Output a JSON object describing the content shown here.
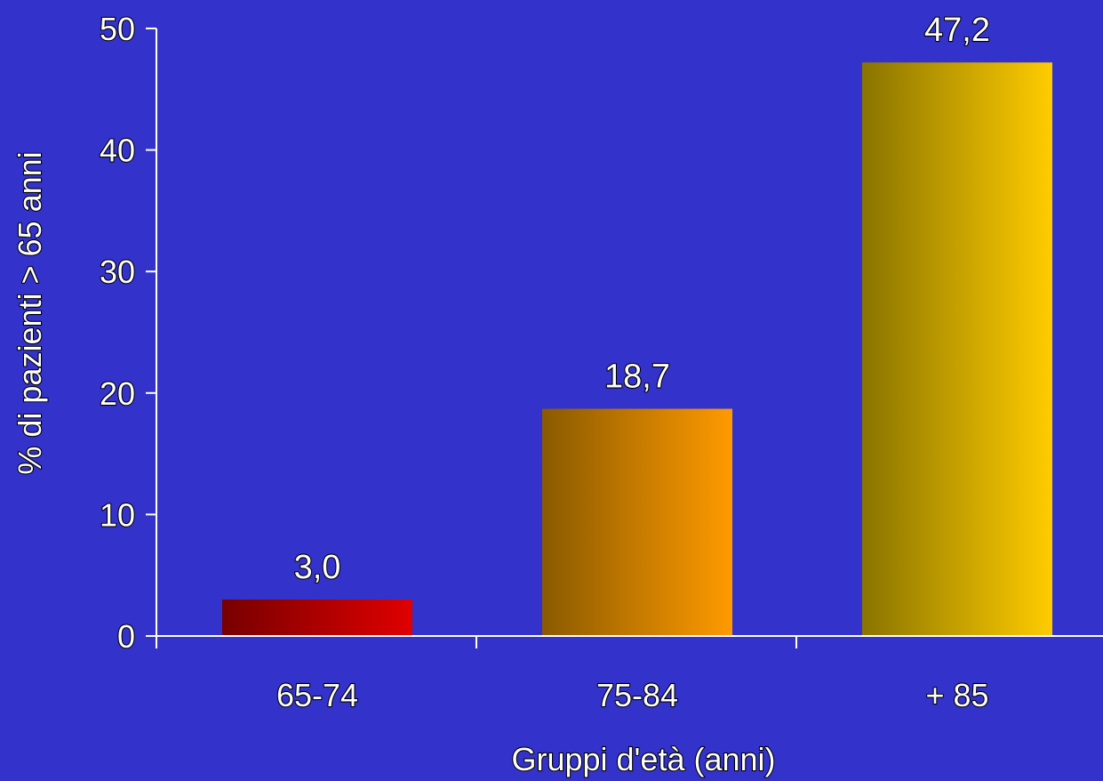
{
  "chart_data": {
    "type": "bar",
    "categories": [
      "65-74",
      "75-84",
      "+ 85"
    ],
    "values": [
      3.0,
      18.7,
      47.2
    ],
    "data_labels": [
      "3,0",
      "18,7",
      "47,2"
    ],
    "title": "",
    "xlabel": "Gruppi d'età (anni)",
    "ylabel": "% di pazienti > 65 anni",
    "ylim": [
      0,
      50
    ],
    "yticks": [
      0,
      10,
      20,
      30,
      40,
      50
    ],
    "ytick_labels": [
      "0",
      "10",
      "20",
      "30",
      "40",
      "50"
    ],
    "grid": false,
    "legend": "none",
    "colors": {
      "background": "#3333CC",
      "axis": "#FFFFFF",
      "text": "#FFFFFF",
      "bar_gradients": [
        [
          "#770000",
          "#E00000"
        ],
        [
          "#8A5A00",
          "#FF9A00"
        ],
        [
          "#8A7400",
          "#FFCC00"
        ]
      ]
    }
  }
}
